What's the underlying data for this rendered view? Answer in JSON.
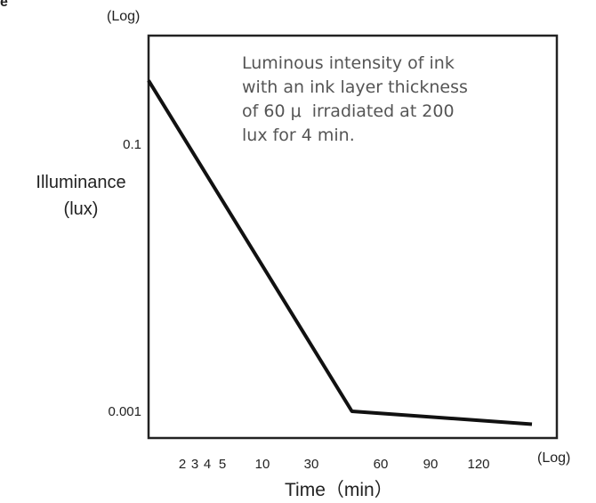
{
  "chart_data": {
    "type": "line",
    "corner_text": "e",
    "y_scale_label": "(Log)",
    "x_scale_label": "(Log)",
    "ylabel_line1": "Illuminance",
    "ylabel_line2": "(lux)",
    "xlabel": "Time（min）",
    "annotation": "Luminous intensity of ink\nwith an ink layer thickness\nof 60 μ  irradiated at 200\nlux for 4 min.",
    "y_scale": "log",
    "y_ticks": [
      {
        "value": 0.1,
        "label": "0.1"
      },
      {
        "value": 0.001,
        "label": "0.001"
      }
    ],
    "x_scale": "log",
    "x_ticks": [
      {
        "value": 2,
        "label": "2"
      },
      {
        "value": 3,
        "label": "3"
      },
      {
        "value": 4,
        "label": "4"
      },
      {
        "value": 5,
        "label": "5"
      },
      {
        "value": 10,
        "label": "10"
      },
      {
        "value": 30,
        "label": "30"
      },
      {
        "value": 60,
        "label": "60"
      },
      {
        "value": 90,
        "label": "90"
      },
      {
        "value": 120,
        "label": "120"
      }
    ],
    "series": [
      {
        "points": [
          {
            "x": 1,
            "y": 0.3
          },
          {
            "x": 45,
            "y": 0.001
          },
          {
            "x": 200,
            "y": 0.0008
          }
        ]
      }
    ],
    "grid": false,
    "legend": "none"
  }
}
